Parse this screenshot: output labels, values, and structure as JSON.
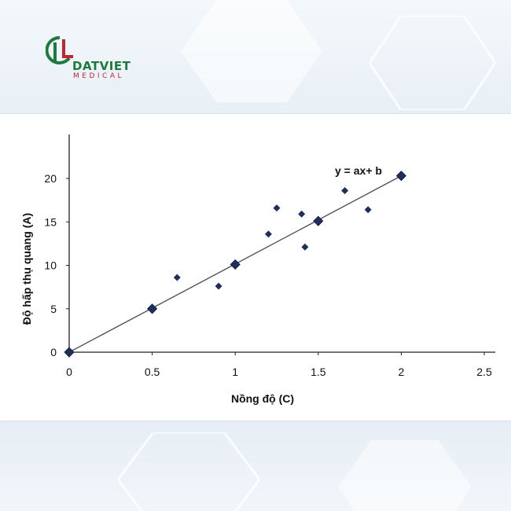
{
  "brand": {
    "name": "DATVIET",
    "subtitle": "MEDICAL",
    "colors": {
      "green": "#1d7a3c",
      "red": "#c0272d"
    }
  },
  "chart_data": {
    "type": "scatter",
    "title": "",
    "xlabel": "Nồng độ (C)",
    "ylabel": "Độ hấp thụ quang (A)",
    "equation_label": "y = ax+ b",
    "xlim": [
      0,
      2.5
    ],
    "ylim": [
      0,
      22
    ],
    "x_ticks": [
      "0",
      "0.5",
      "1",
      "1.5",
      "2",
      "2.5"
    ],
    "y_ticks": [
      "0",
      "5",
      "10",
      "15",
      "20"
    ],
    "grid": false,
    "series": [
      {
        "marker": "diamond",
        "points": [
          [
            0.65,
            8.6
          ],
          [
            0.9,
            7.6
          ],
          [
            1.2,
            13.6
          ],
          [
            1.25,
            16.6
          ],
          [
            1.4,
            15.9
          ],
          [
            1.42,
            12.1
          ],
          [
            1.66,
            18.6
          ],
          [
            1.8,
            16.4
          ]
        ]
      },
      {
        "marker": "diamond-on-line",
        "points": [
          [
            0,
            0
          ],
          [
            0.5,
            5
          ],
          [
            1.0,
            10.1
          ],
          [
            1.5,
            15.1
          ],
          [
            2.0,
            20.3
          ]
        ]
      }
    ],
    "trendline": {
      "x": [
        0,
        2
      ],
      "y": [
        0,
        20.3
      ]
    },
    "colors": {
      "marker": "#1f2f5c",
      "line": "#555555",
      "axis": "#222222"
    }
  }
}
